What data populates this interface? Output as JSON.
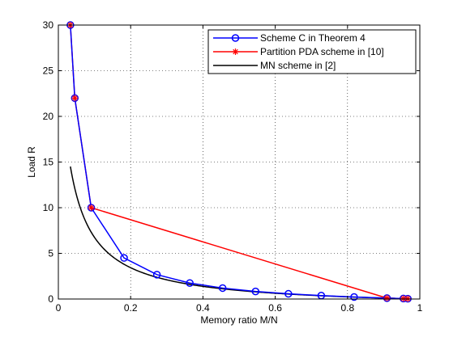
{
  "chart_data": {
    "type": "line",
    "xlabel": "Memory ratio M/N",
    "ylabel": "Load R",
    "xlim": [
      0,
      1
    ],
    "ylim": [
      0,
      30
    ],
    "xticks": [
      "0",
      "0.2",
      "0.4",
      "0.6",
      "0.8",
      "1"
    ],
    "xtick_values": [
      0,
      0.2,
      0.4,
      0.6,
      0.8,
      1
    ],
    "yticks": [
      "0",
      "5",
      "10",
      "15",
      "20",
      "25",
      "30"
    ],
    "ytick_values": [
      0,
      5,
      10,
      15,
      20,
      25,
      30
    ],
    "grid": true,
    "legend_position": "top-right",
    "series": [
      {
        "name": "Scheme C in Theorem 4",
        "color": "#0000ff",
        "marker": "circle",
        "x": [
          0.0333,
          0.0455,
          0.0909,
          0.1818,
          0.2727,
          0.3636,
          0.4545,
          0.5455,
          0.6364,
          0.7273,
          0.8182,
          0.9091,
          0.9545,
          0.9667
        ],
        "y": [
          30,
          22,
          10,
          4.5,
          2.67,
          1.75,
          1.2,
          0.83,
          0.57,
          0.375,
          0.22,
          0.1,
          0.05,
          0.03
        ]
      },
      {
        "name": "Partition PDA scheme in [10]",
        "color": "#ff0000",
        "marker": "star",
        "x": [
          0.0333,
          0.0455,
          0.0909,
          0.9091,
          0.9545,
          0.9667
        ],
        "y": [
          30,
          22,
          10,
          0.1,
          0.05,
          0.03
        ]
      },
      {
        "name": "MN scheme in [2]",
        "color": "#000000",
        "marker": "none",
        "function": "N(1-t)/(1+Nt)",
        "N": 30,
        "x_range": [
          0.0333,
          0.9667
        ]
      }
    ]
  }
}
